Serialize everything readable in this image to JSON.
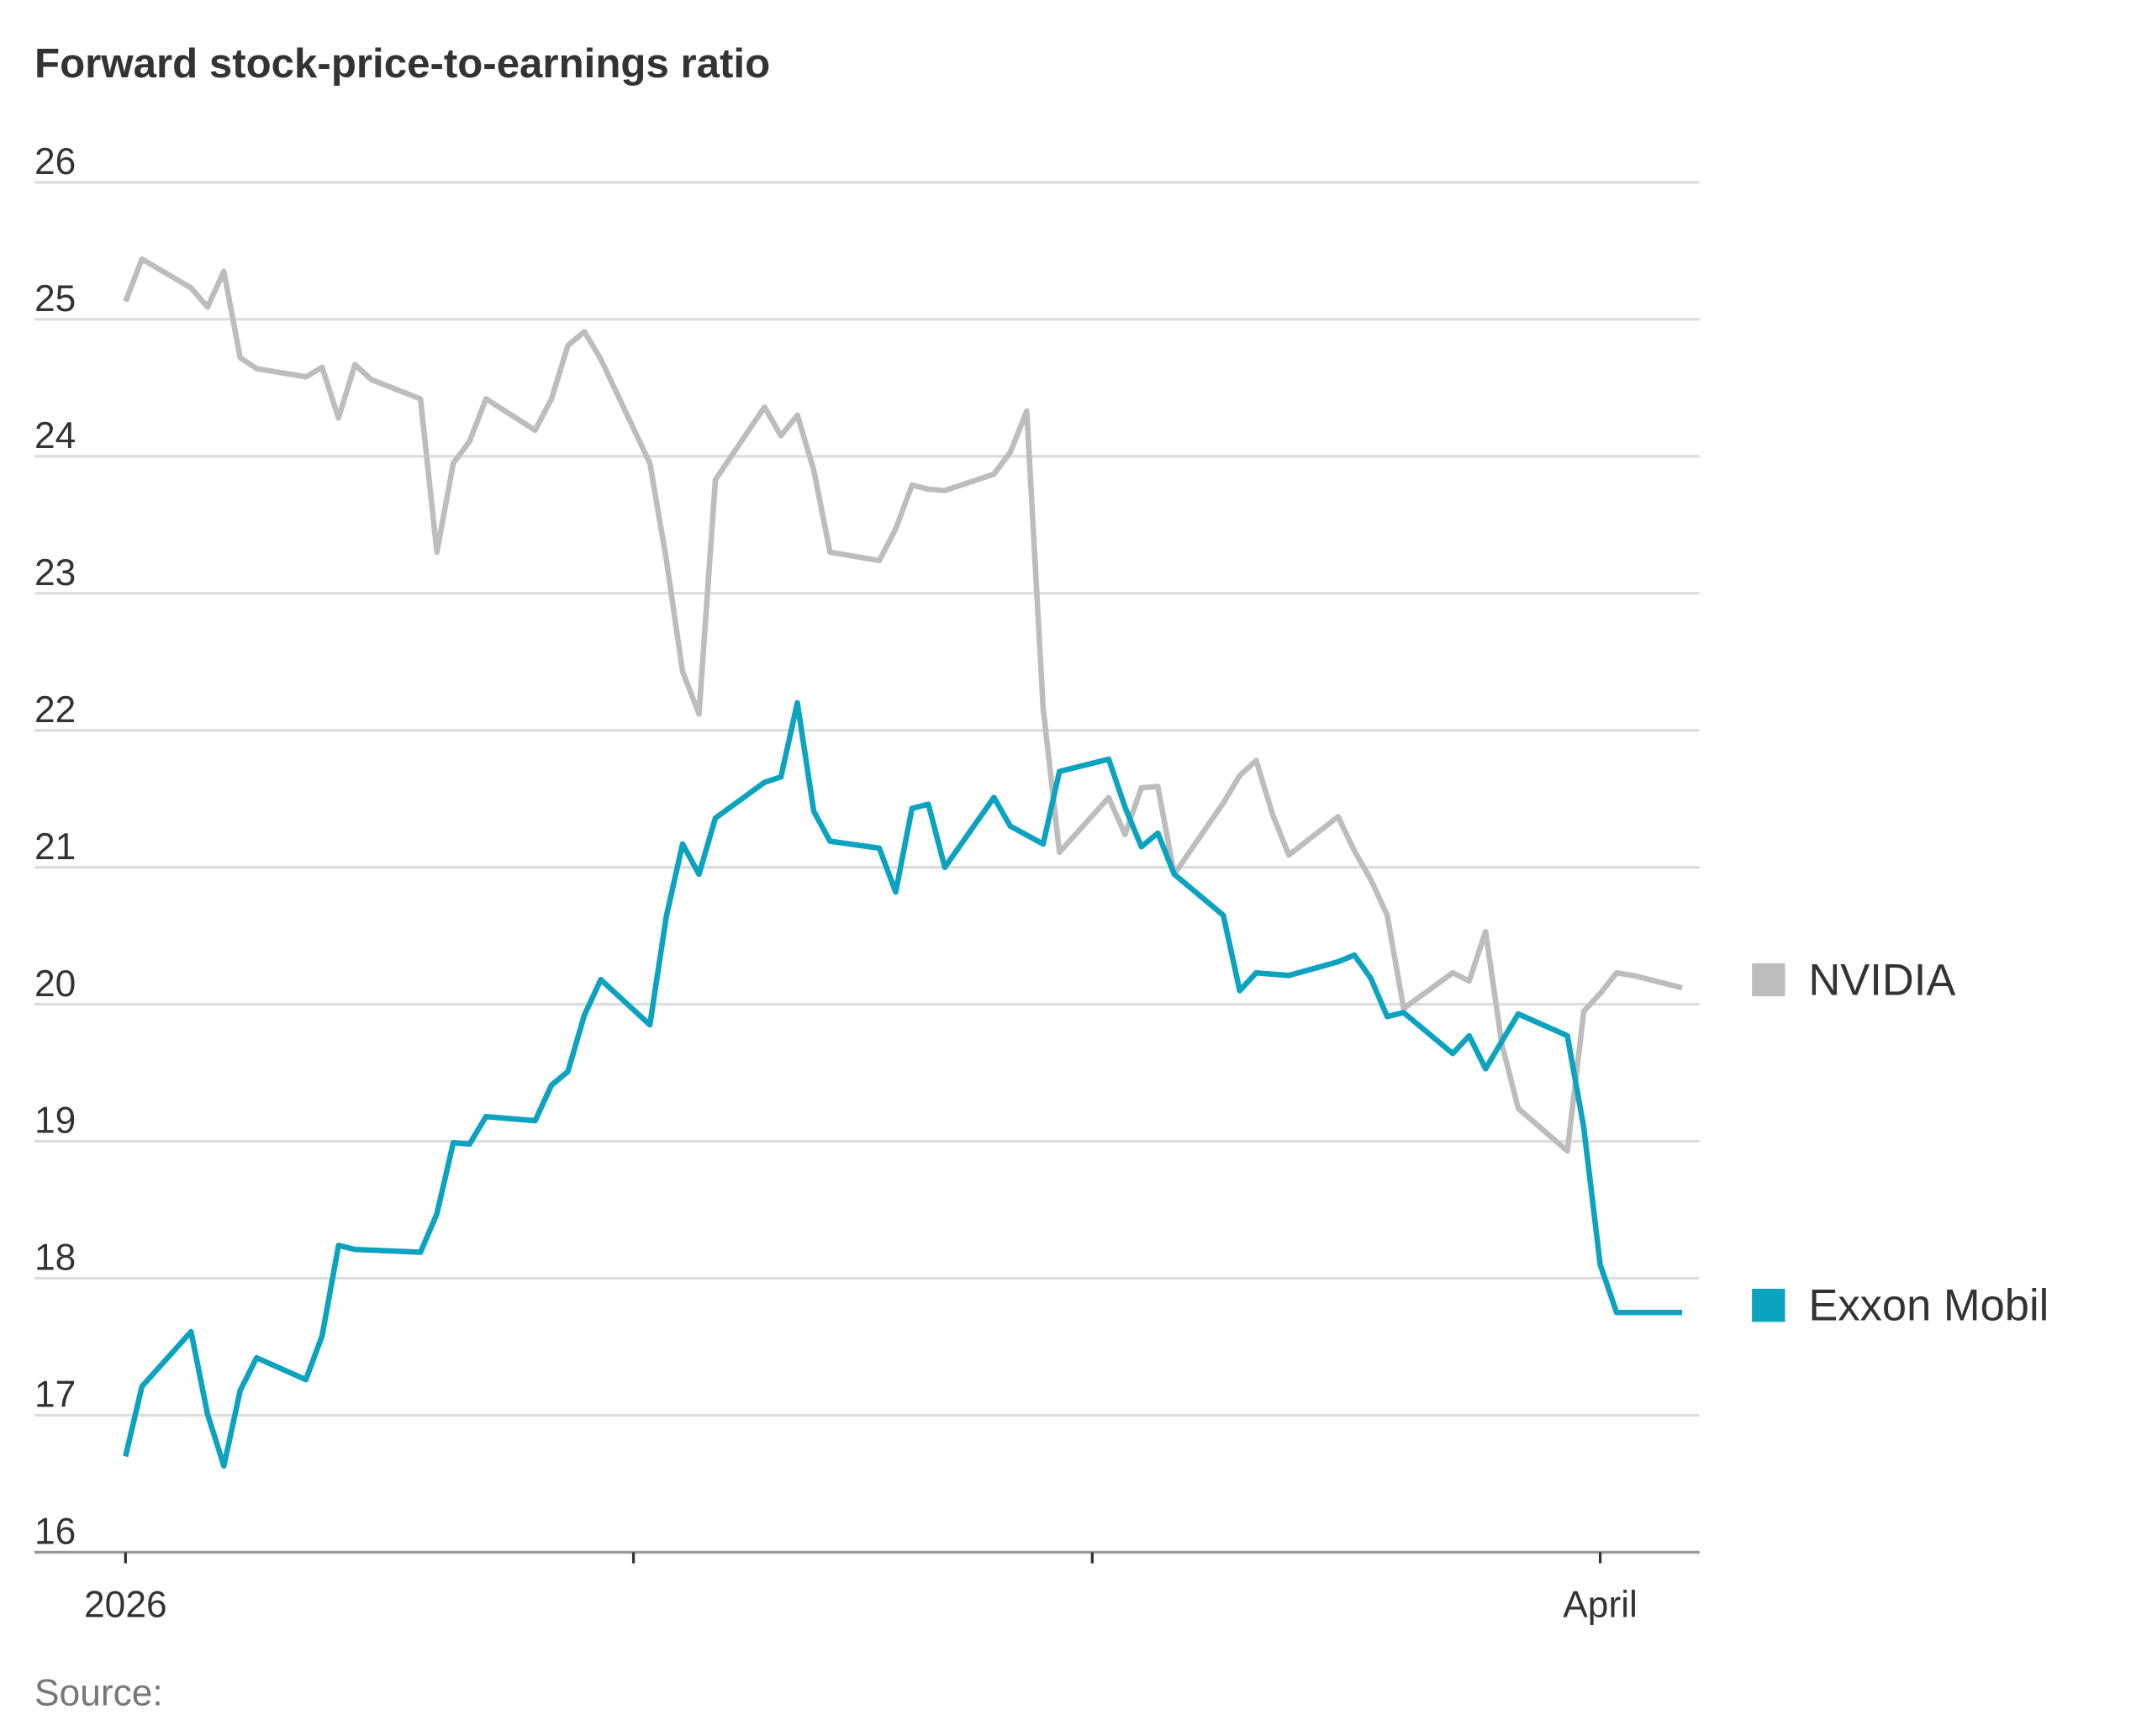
{
  "chart_data": {
    "type": "line",
    "title": "Forward stock-price-to-earnings ratio",
    "source": "Source:",
    "xlabel": "",
    "ylabel": "",
    "ylim": [
      16,
      26
    ],
    "yticks": [
      16,
      17,
      18,
      19,
      20,
      21,
      22,
      23,
      24,
      25,
      26
    ],
    "xlim": [
      "2026-01-01",
      "2026-04-08"
    ],
    "xticks": [
      {
        "date": "2026-01-01",
        "label": "2026"
      },
      {
        "date": "2026-02-01",
        "label": ""
      },
      {
        "date": "2026-03-01",
        "label": ""
      },
      {
        "date": "2026-04-01",
        "label": "April"
      }
    ],
    "grid": true,
    "legend_placement": "right",
    "series": [
      {
        "name": "NVIDIA",
        "color": "#bdbdbd",
        "points": [
          [
            "2026-01-01",
            25.13
          ],
          [
            "2026-01-02",
            25.44
          ],
          [
            "2026-01-05",
            25.23
          ],
          [
            "2026-01-06",
            25.09
          ],
          [
            "2026-01-07",
            25.35
          ],
          [
            "2026-01-08",
            24.72
          ],
          [
            "2026-01-09",
            24.64
          ],
          [
            "2026-01-12",
            24.58
          ],
          [
            "2026-01-13",
            24.65
          ],
          [
            "2026-01-14",
            24.28
          ],
          [
            "2026-01-15",
            24.67
          ],
          [
            "2026-01-16",
            24.56
          ],
          [
            "2026-01-19",
            24.42
          ],
          [
            "2026-01-20",
            23.3
          ],
          [
            "2026-01-21",
            23.95
          ],
          [
            "2026-01-22",
            24.11
          ],
          [
            "2026-01-23",
            24.42
          ],
          [
            "2026-01-26",
            24.19
          ],
          [
            "2026-01-27",
            24.42
          ],
          [
            "2026-01-28",
            24.81
          ],
          [
            "2026-01-29",
            24.91
          ],
          [
            "2026-01-30",
            24.71
          ],
          [
            "2026-02-02",
            23.95
          ],
          [
            "2026-02-03",
            23.25
          ],
          [
            "2026-02-04",
            22.43
          ],
          [
            "2026-02-05",
            22.12
          ],
          [
            "2026-02-06",
            23.83
          ],
          [
            "2026-02-09",
            24.36
          ],
          [
            "2026-02-10",
            24.15
          ],
          [
            "2026-02-11",
            24.3
          ],
          [
            "2026-02-12",
            23.9
          ],
          [
            "2026-02-13",
            23.3
          ],
          [
            "2026-02-16",
            23.24
          ],
          [
            "2026-02-17",
            23.47
          ],
          [
            "2026-02-18",
            23.79
          ],
          [
            "2026-02-19",
            23.76
          ],
          [
            "2026-02-20",
            23.75
          ],
          [
            "2026-02-23",
            23.87
          ],
          [
            "2026-02-24",
            24.03
          ],
          [
            "2026-02-25",
            24.33
          ],
          [
            "2026-02-26",
            22.16
          ],
          [
            "2026-02-27",
            21.11
          ],
          [
            "2026-03-02",
            21.51
          ],
          [
            "2026-03-03",
            21.24
          ],
          [
            "2026-03-04",
            21.58
          ],
          [
            "2026-03-05",
            21.59
          ],
          [
            "2026-03-06",
            20.95
          ],
          [
            "2026-03-09",
            21.47
          ],
          [
            "2026-03-10",
            21.67
          ],
          [
            "2026-03-11",
            21.78
          ],
          [
            "2026-03-12",
            21.39
          ],
          [
            "2026-03-13",
            21.09
          ],
          [
            "2026-03-16",
            21.37
          ],
          [
            "2026-03-17",
            21.12
          ],
          [
            "2026-03-18",
            20.91
          ],
          [
            "2026-03-19",
            20.65
          ],
          [
            "2026-03-20",
            19.97
          ],
          [
            "2026-03-23",
            20.23
          ],
          [
            "2026-03-24",
            20.17
          ],
          [
            "2026-03-25",
            20.53
          ],
          [
            "2026-03-26",
            19.71
          ],
          [
            "2026-03-27",
            19.24
          ],
          [
            "2026-03-30",
            18.93
          ],
          [
            "2026-03-31",
            19.95
          ],
          [
            "2026-04-01",
            20.08
          ],
          [
            "2026-04-02",
            20.23
          ],
          [
            "2026-04-03",
            20.21
          ],
          [
            "2026-04-06",
            20.12
          ]
        ]
      },
      {
        "name": "Exxon Mobil",
        "color": "#0ba3bf",
        "points": [
          [
            "2026-01-01",
            16.7
          ],
          [
            "2026-01-02",
            17.21
          ],
          [
            "2026-01-05",
            17.61
          ],
          [
            "2026-01-06",
            17.01
          ],
          [
            "2026-01-07",
            16.63
          ],
          [
            "2026-01-08",
            17.18
          ],
          [
            "2026-01-09",
            17.42
          ],
          [
            "2026-01-12",
            17.26
          ],
          [
            "2026-01-13",
            17.58
          ],
          [
            "2026-01-14",
            18.24
          ],
          [
            "2026-01-15",
            18.21
          ],
          [
            "2026-01-19",
            18.19
          ],
          [
            "2026-01-20",
            18.47
          ],
          [
            "2026-01-21",
            18.99
          ],
          [
            "2026-01-22",
            18.98
          ],
          [
            "2026-01-23",
            19.18
          ],
          [
            "2026-01-26",
            19.15
          ],
          [
            "2026-01-27",
            19.41
          ],
          [
            "2026-01-28",
            19.51
          ],
          [
            "2026-01-29",
            19.92
          ],
          [
            "2026-01-30",
            20.18
          ],
          [
            "2026-02-02",
            19.85
          ],
          [
            "2026-02-03",
            20.64
          ],
          [
            "2026-02-04",
            21.17
          ],
          [
            "2026-02-05",
            20.95
          ],
          [
            "2026-02-06",
            21.36
          ],
          [
            "2026-02-09",
            21.62
          ],
          [
            "2026-02-10",
            21.66
          ],
          [
            "2026-02-11",
            22.2
          ],
          [
            "2026-02-12",
            21.41
          ],
          [
            "2026-02-13",
            21.19
          ],
          [
            "2026-02-16",
            21.14
          ],
          [
            "2026-02-17",
            20.82
          ],
          [
            "2026-02-18",
            21.43
          ],
          [
            "2026-02-19",
            21.46
          ],
          [
            "2026-02-20",
            21.0
          ],
          [
            "2026-02-23",
            21.51
          ],
          [
            "2026-02-24",
            21.3
          ],
          [
            "2026-02-26",
            21.17
          ],
          [
            "2026-02-27",
            21.7
          ],
          [
            "2026-03-02",
            21.79
          ],
          [
            "2026-03-03",
            21.44
          ],
          [
            "2026-03-04",
            21.15
          ],
          [
            "2026-03-05",
            21.25
          ],
          [
            "2026-03-06",
            20.95
          ],
          [
            "2026-03-09",
            20.65
          ],
          [
            "2026-03-10",
            20.1
          ],
          [
            "2026-03-11",
            20.23
          ],
          [
            "2026-03-13",
            20.21
          ],
          [
            "2026-03-16",
            20.31
          ],
          [
            "2026-03-17",
            20.36
          ],
          [
            "2026-03-18",
            20.19
          ],
          [
            "2026-03-19",
            19.91
          ],
          [
            "2026-03-20",
            19.94
          ],
          [
            "2026-03-23",
            19.64
          ],
          [
            "2026-03-24",
            19.77
          ],
          [
            "2026-03-25",
            19.53
          ],
          [
            "2026-03-26",
            19.73
          ],
          [
            "2026-03-27",
            19.93
          ],
          [
            "2026-03-30",
            19.77
          ],
          [
            "2026-03-31",
            19.1
          ],
          [
            "2026-04-01",
            18.1
          ],
          [
            "2026-04-02",
            17.75
          ],
          [
            "2026-04-03",
            17.75
          ],
          [
            "2026-04-06",
            17.75
          ]
        ]
      }
    ]
  }
}
